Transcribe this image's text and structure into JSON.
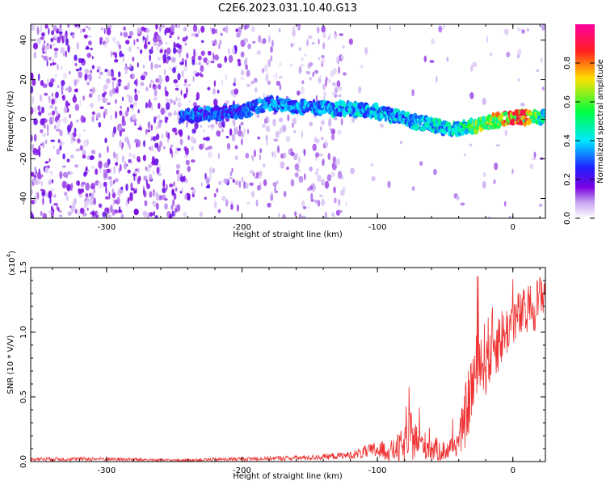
{
  "figure": {
    "title": "C2E6.2023.031.10.40.G13"
  },
  "chart_data": [
    {
      "type": "heatmap",
      "xlabel": "Height of straight line (km)",
      "ylabel": "Frequency (Hz)",
      "xlim": [
        -356,
        24
      ],
      "ylim": [
        -50,
        48
      ],
      "x_ticks": [
        -300,
        -200,
        -100,
        0
      ],
      "y_ticks": [
        -40,
        -20,
        0,
        20,
        40
      ],
      "colorbar": {
        "label": "Normalized spectral amplitude",
        "range": [
          0,
          1
        ],
        "ticks": [
          "0.0",
          "0.2",
          "0.4",
          "0.6",
          "0.8"
        ],
        "colors": [
          "#ffffff",
          "#c8a8f0",
          "#7a00e0",
          "#2020ff",
          "#00e8ff",
          "#00ff40",
          "#ffe000",
          "#ff2020",
          "#ff00a0"
        ]
      },
      "ridge": {
        "description_points_x": [
          -240,
          -200,
          -180,
          -150,
          -120,
          -100,
          -80,
          -60,
          -45,
          -35,
          -25,
          -10,
          0,
          10,
          24
        ],
        "frequency_hz": [
          2,
          4,
          8,
          6,
          5,
          4,
          0,
          -3,
          -5,
          -4,
          -3,
          0,
          1,
          1,
          1
        ],
        "peak_amplitude": [
          0.35,
          0.35,
          0.4,
          0.4,
          0.45,
          0.45,
          0.45,
          0.5,
          0.5,
          0.55,
          0.7,
          0.85,
          0.95,
          0.85,
          0.5
        ]
      }
    },
    {
      "type": "line",
      "xlabel": "Height of straight line (km)",
      "ylabel": "SNR (10 * V/V)",
      "y_scale_label": "(x10",
      "y_scale_exp": "4",
      "y_scale_close": ")",
      "xlim": [
        -356,
        24
      ],
      "ylim": [
        0,
        1.5
      ],
      "x_ticks": [
        -300,
        -200,
        -100,
        0
      ],
      "y_ticks": [
        "0.0",
        "0.5",
        "1.0",
        "1.5"
      ],
      "y_tick_values": [
        0,
        0.5,
        1.0,
        1.5
      ],
      "series": [
        {
          "color": "#ee3030",
          "x": [
            -356,
            -300,
            -250,
            -200,
            -150,
            -120,
            -110,
            -100,
            -90,
            -80,
            -75,
            -70,
            -60,
            -50,
            -40,
            -35,
            -30,
            -25,
            -20,
            -15,
            -10,
            -5,
            0,
            10,
            20,
            24
          ],
          "y_base": [
            0.02,
            0.02,
            0.01,
            0.02,
            0.03,
            0.05,
            0.07,
            0.09,
            0.08,
            0.12,
            0.2,
            0.15,
            0.1,
            0.08,
            0.15,
            0.35,
            0.6,
            0.75,
            0.8,
            0.9,
            0.95,
            1.0,
            1.1,
            1.15,
            1.25,
            1.35
          ],
          "y_noise": [
            0.015,
            0.015,
            0.01,
            0.015,
            0.02,
            0.03,
            0.05,
            0.07,
            0.08,
            0.15,
            0.2,
            0.12,
            0.1,
            0.08,
            0.1,
            0.25,
            0.3,
            0.3,
            0.3,
            0.3,
            0.25,
            0.2,
            0.2,
            0.2,
            0.2,
            0.15
          ]
        }
      ]
    }
  ]
}
